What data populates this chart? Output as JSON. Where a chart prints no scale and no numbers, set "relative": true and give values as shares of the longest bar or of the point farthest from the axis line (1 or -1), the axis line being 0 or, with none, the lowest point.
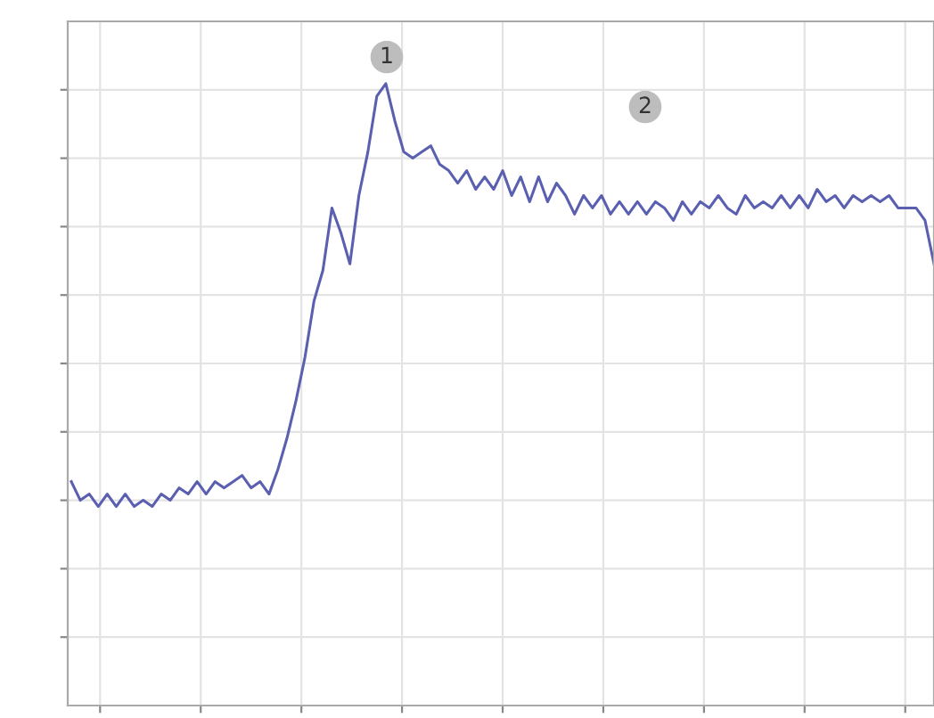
{
  "chart_data": {
    "type": "line",
    "relative": true,
    "grid": true,
    "tick_labels": false,
    "legend": false,
    "marker": "none",
    "line_style": "solid",
    "annotations": [
      "1",
      "2"
    ],
    "categories": [
      null,
      null,
      null,
      null,
      null,
      null,
      null,
      null,
      null,
      null,
      null,
      null,
      null,
      null,
      null,
      null,
      null,
      null,
      null,
      null,
      null,
      null,
      null,
      null,
      null,
      null,
      null,
      null,
      null,
      null,
      null,
      null,
      null,
      null,
      null,
      null,
      null,
      null,
      null,
      null,
      null,
      null,
      null,
      null,
      null,
      null,
      null,
      null,
      null,
      null,
      null,
      null,
      null,
      null,
      null,
      null,
      null,
      null,
      null,
      null,
      null,
      null,
      null,
      null,
      null,
      null,
      null,
      null,
      null,
      null,
      null,
      null,
      null,
      null,
      null,
      null,
      null,
      null,
      null,
      null,
      null,
      null,
      null,
      null,
      null,
      null,
      null,
      null,
      null,
      null,
      null,
      null,
      null,
      null,
      null,
      null,
      null
    ],
    "series": [
      {
        "color": "#5a5fb0",
        "values": [
          0.36,
          0.33,
          0.34,
          0.32,
          0.34,
          0.32,
          0.34,
          0.32,
          0.33,
          0.32,
          0.34,
          0.33,
          0.35,
          0.34,
          0.36,
          0.34,
          0.36,
          0.35,
          0.36,
          0.37,
          0.35,
          0.36,
          0.34,
          0.38,
          0.43,
          0.49,
          0.56,
          0.65,
          0.7,
          0.8,
          0.76,
          0.71,
          0.82,
          0.89,
          0.98,
          1.0,
          0.94,
          0.89,
          0.88,
          0.89,
          0.9,
          0.87,
          0.86,
          0.84,
          0.86,
          0.83,
          0.85,
          0.83,
          0.86,
          0.82,
          0.85,
          0.81,
          0.85,
          0.81,
          0.84,
          0.82,
          0.79,
          0.82,
          0.8,
          0.82,
          0.79,
          0.81,
          0.79,
          0.81,
          0.79,
          0.81,
          0.8,
          0.78,
          0.81,
          0.79,
          0.81,
          0.8,
          0.82,
          0.8,
          0.79,
          0.82,
          0.8,
          0.81,
          0.8,
          0.82,
          0.8,
          0.82,
          0.8,
          0.83,
          0.81,
          0.82,
          0.8,
          0.82,
          0.81,
          0.82,
          0.81,
          0.82,
          0.8,
          0.8,
          0.8,
          0.78,
          0.71
        ]
      }
    ]
  }
}
